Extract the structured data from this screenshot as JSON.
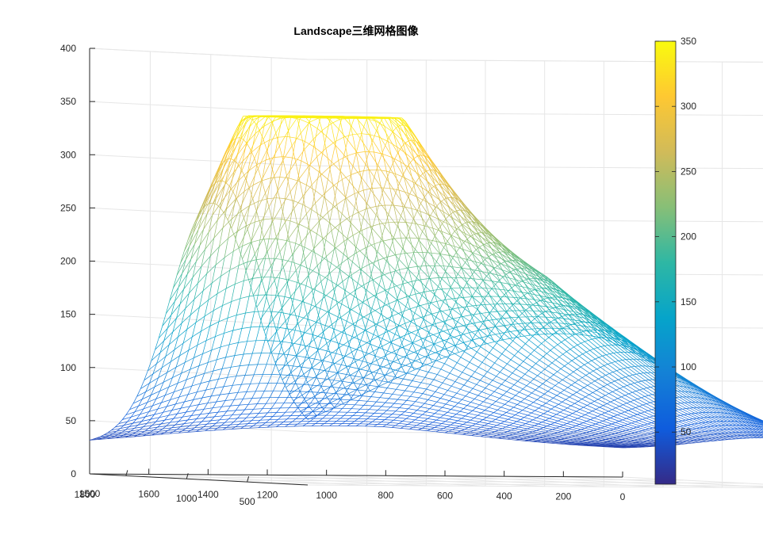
{
  "chart_data": {
    "type": "surface",
    "title": "Landscape三维网格图像",
    "xlabel": "",
    "ylabel": "",
    "zlabel": "",
    "x_ticks": [
      "1500",
      "1000",
      "500",
      "1800"
    ],
    "y_ticks": [
      "1600",
      "1400",
      "1200",
      "1000",
      "800",
      "600",
      "400",
      "200",
      "0"
    ],
    "z_ticks": [
      "0",
      "50",
      "100",
      "150",
      "200",
      "250",
      "300",
      "350",
      "400"
    ],
    "xlim": [
      0,
      1800
    ],
    "ylim": [
      0,
      1800
    ],
    "zlim": [
      0,
      400
    ],
    "grid": true,
    "colormap": "parula",
    "colorbar": {
      "ticks": [
        "50",
        "100",
        "150",
        "200",
        "250",
        "300",
        "350"
      ],
      "range": [
        10,
        350
      ]
    },
    "surface": {
      "shape": "landscape of two gaussian bumps over a base plane",
      "base_level": 25,
      "peaks": [
        {
          "x": 1000,
          "y": 1500,
          "height": 342,
          "spread_x": 330,
          "spread_y": 320
        },
        {
          "x": 1300,
          "y": 900,
          "height": 180,
          "spread_x": 650,
          "spread_y": 520
        }
      ],
      "min_z": 10,
      "max_z": 342
    }
  },
  "colors": {
    "grid": "#e6e6e6",
    "axis": "#262626",
    "colormap_stops": [
      "#352a87",
      "#0f5cdd",
      "#1481d6",
      "#06a4ca",
      "#2eb7a4",
      "#87bf77",
      "#d1bb59",
      "#fec832",
      "#f9fb0e"
    ]
  }
}
